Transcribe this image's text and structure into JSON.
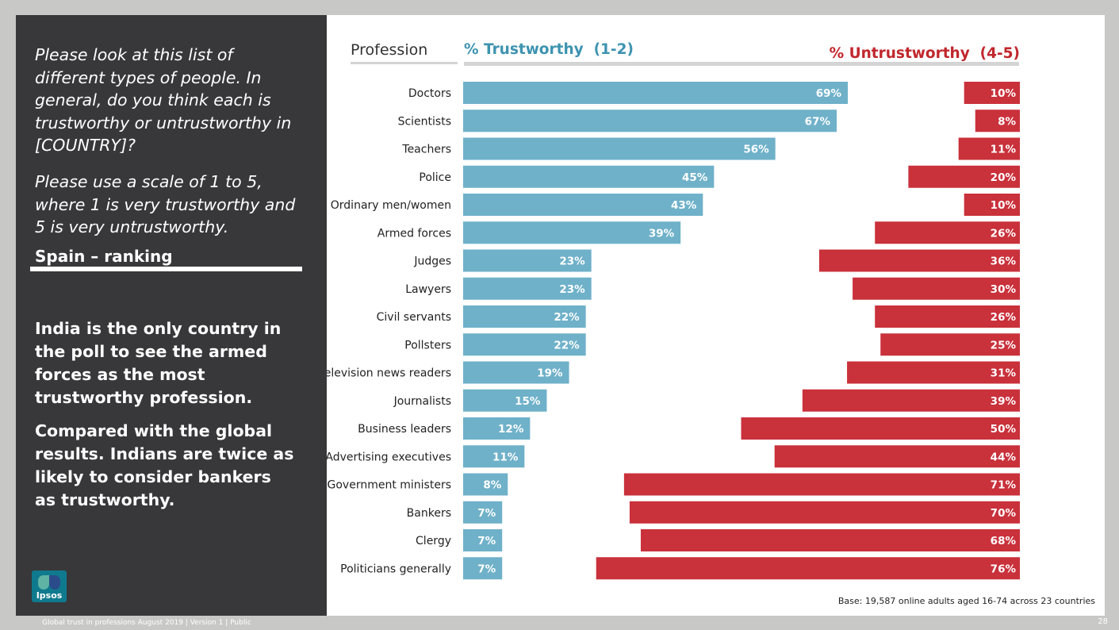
{
  "left_panel": {
    "question_1": "Please look at this list of different types of people. In general, do you think each is trustworthy or untrustworthy in [COUNTRY]?",
    "question_2": "Please use a scale of 1 to 5, where 1 is very trustworthy and 5 is very untrustworthy.",
    "country_title": "Spain – ranking",
    "insight_1": "India is the only country in the poll to see the armed forces as the most trustworthy profession.",
    "insight_2": "Compared with the global results. Indians are twice as likely to consider bankers as trustworthy.",
    "logo_text": "Ipsos"
  },
  "footer": {
    "text": "Global trust in professions August 2019 | Version 1 | Public",
    "page_number": "28"
  },
  "base_note": "Base: 19,587 online adults aged 16-74 across 23 countries",
  "colors": {
    "trustworthy": "#6fb1c9",
    "untrustworthy": "#c9313b",
    "trustworthy_header": "#3d93b0",
    "untrustworthy_header": "#c0272d",
    "panel_dark": "#38383a"
  },
  "chart_data": {
    "type": "bar",
    "orientation": "horizontal",
    "category_header": "Profession",
    "categories": [
      "Doctors",
      "Scientists",
      "Teachers",
      "Police",
      "Ordinary men/women",
      "Armed forces",
      "Judges",
      "Lawyers",
      "Civil servants",
      "Pollsters",
      "Television news readers",
      "Journalists",
      "Business leaders",
      "Advertising executives",
      "Government ministers",
      "Bankers",
      "Clergy",
      "Politicians generally"
    ],
    "series": [
      {
        "name": "% Trustworthy  (1-2)",
        "values": [
          69,
          67,
          56,
          45,
          43,
          39,
          23,
          23,
          22,
          22,
          19,
          15,
          12,
          11,
          8,
          7,
          7,
          7
        ],
        "labels": [
          "69%",
          "67%",
          "56%",
          "45%",
          "43%",
          "39%",
          "23%",
          "23%",
          "22%",
          "22%",
          "19%",
          "15%",
          "12%",
          "11%",
          "8%",
          "7%",
          "7%",
          "7%"
        ]
      },
      {
        "name": "% Untrustworthy  (4-5)",
        "values": [
          10,
          8,
          11,
          20,
          10,
          26,
          36,
          30,
          26,
          25,
          31,
          39,
          50,
          44,
          71,
          70,
          68,
          76
        ],
        "labels": [
          "10%",
          "8%",
          "11%",
          "20%",
          "10%",
          "26%",
          "36%",
          "30%",
          "26%",
          "25%",
          "31%",
          "39%",
          "50%",
          "44%",
          "71%",
          "70%",
          "68%",
          "76%"
        ]
      }
    ],
    "xlim": [
      0,
      100
    ]
  }
}
